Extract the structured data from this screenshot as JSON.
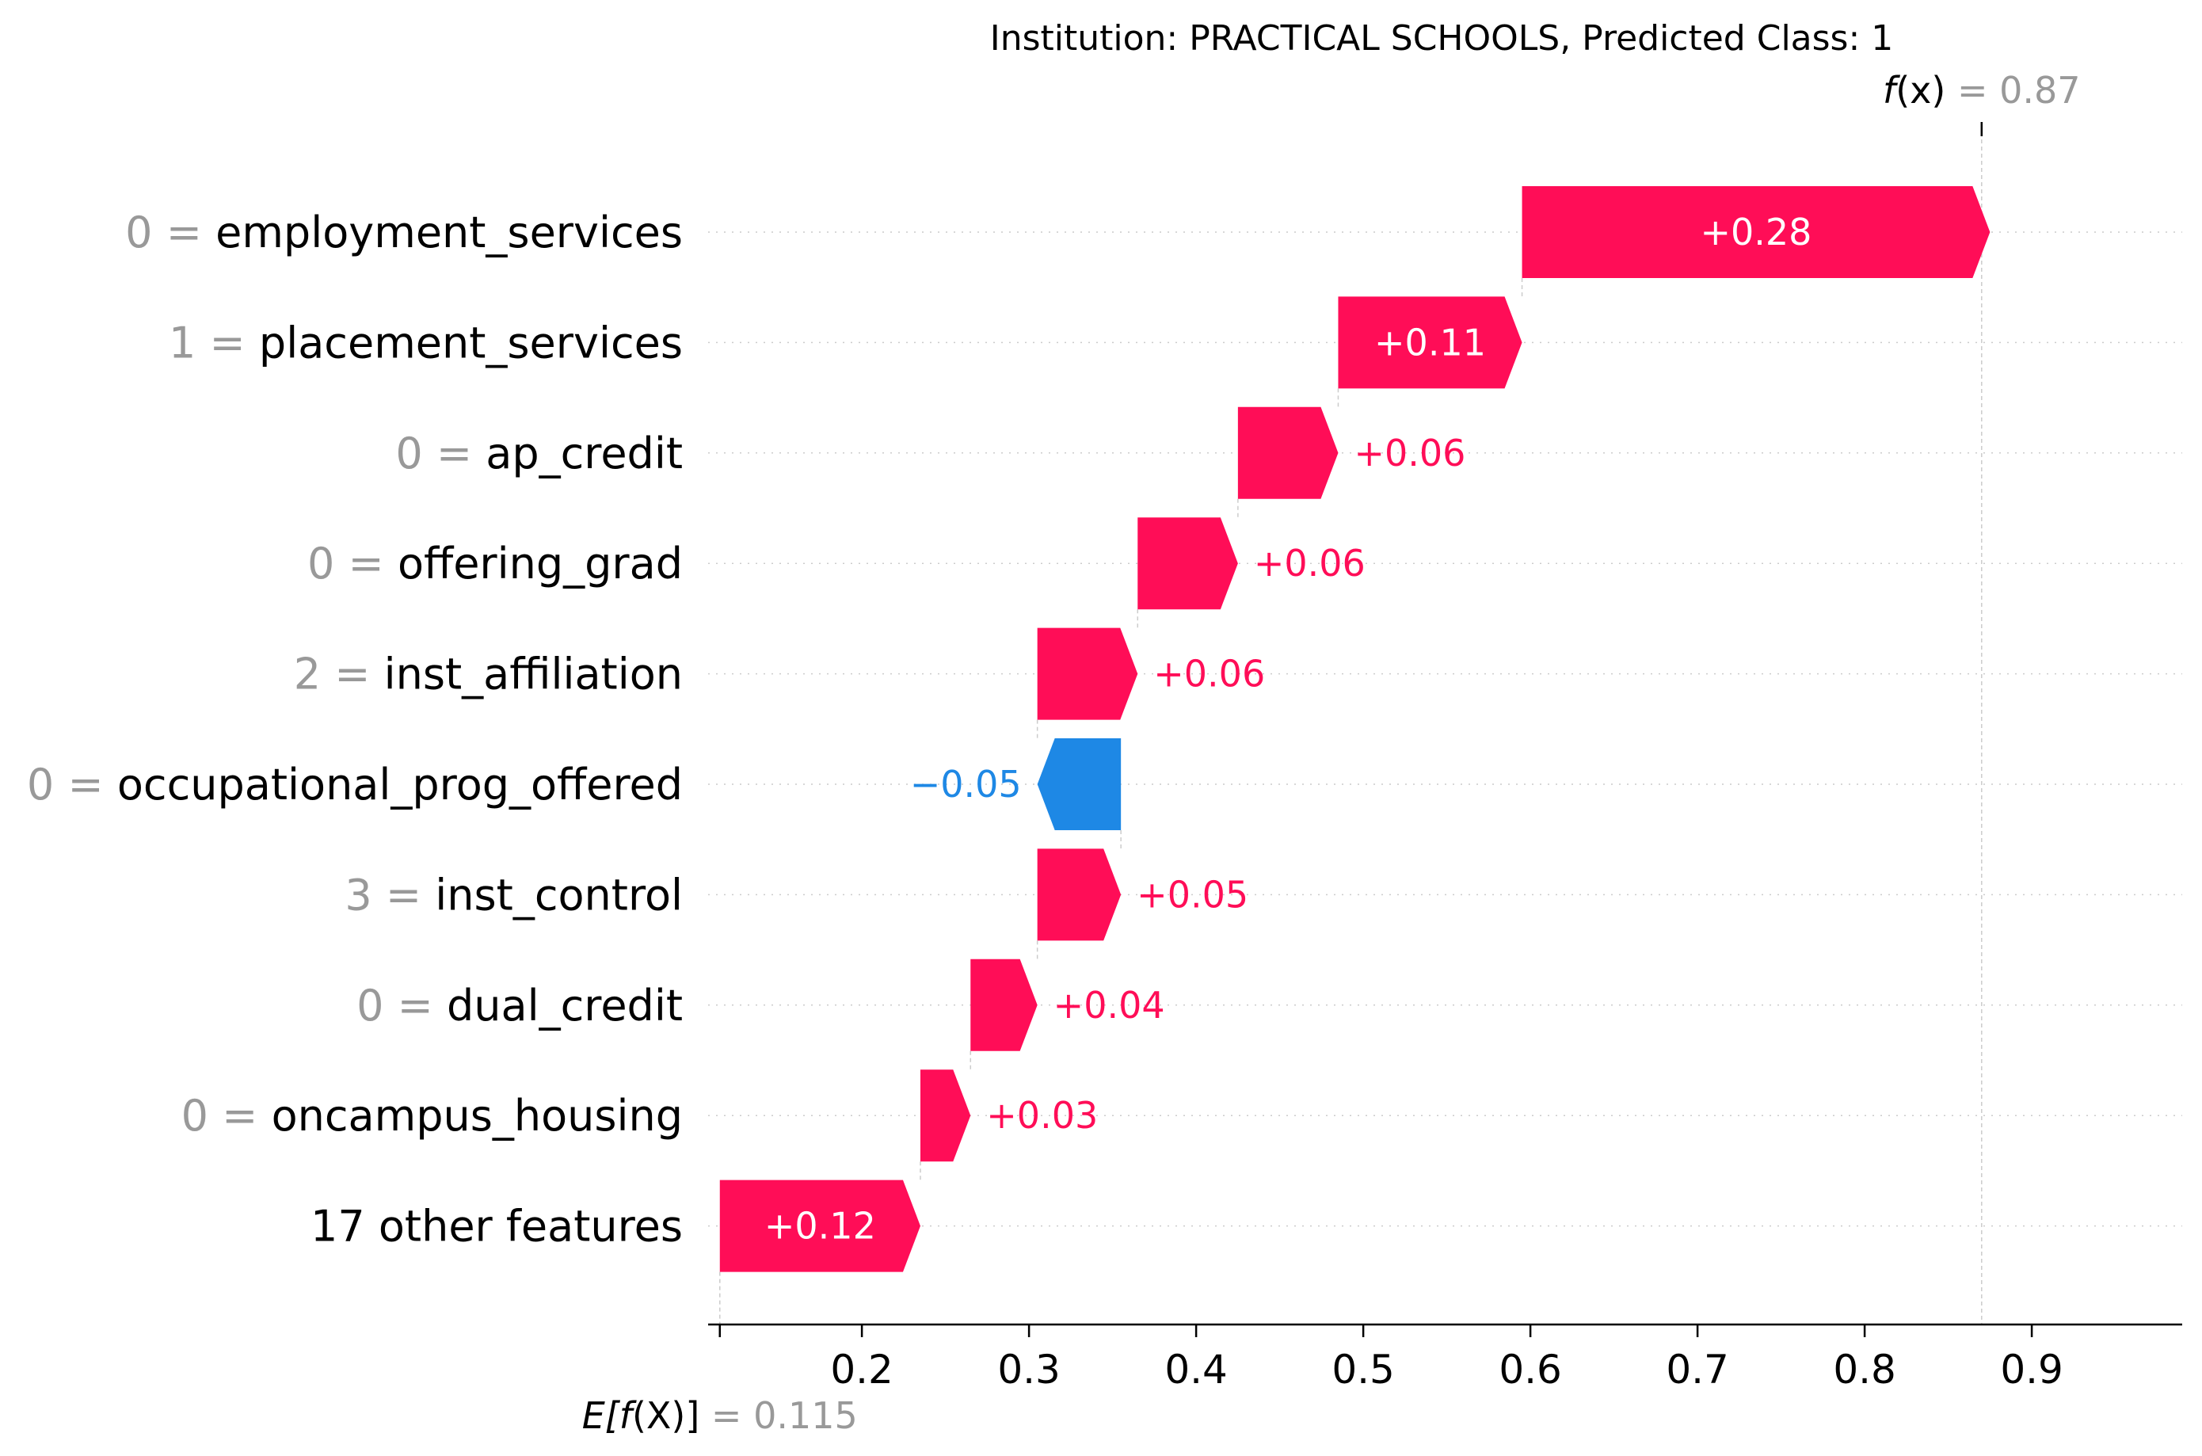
{
  "chart_data": {
    "type": "waterfall",
    "title": "Institution: PRACTICAL SCHOOLS, Predicted Class: 1",
    "base_value": 0.115,
    "base_label_prefix": "E[",
    "base_label_fn": "f",
    "base_label_arg": "(X)",
    "base_label_suffix": "]",
    "base_label_eq": " = ",
    "base_value_text": "0.115",
    "final_value": 0.87,
    "final_label_fn": "f",
    "final_label_arg": "(x)",
    "final_label_eq": " = ",
    "final_value_text": "0.87",
    "xlim": [
      0.108,
      0.99
    ],
    "x_ticks": [
      0.2,
      0.3,
      0.4,
      0.5,
      0.6,
      0.7,
      0.8,
      0.9
    ],
    "x_tick_labels": [
      "0.2",
      "0.3",
      "0.4",
      "0.5",
      "0.6",
      "0.7",
      "0.8",
      "0.9"
    ],
    "features": [
      {
        "value": "0",
        "name": "employment_services",
        "contribution": 0.28,
        "label": "+0.28"
      },
      {
        "value": "1",
        "name": "placement_services",
        "contribution": 0.11,
        "label": "+0.11"
      },
      {
        "value": "0",
        "name": "ap_credit",
        "contribution": 0.06,
        "label": "+0.06"
      },
      {
        "value": "0",
        "name": "offering_grad",
        "contribution": 0.06,
        "label": "+0.06"
      },
      {
        "value": "2",
        "name": "inst_affiliation",
        "contribution": 0.06,
        "label": "+0.06"
      },
      {
        "value": "0",
        "name": "occupational_prog_offered",
        "contribution": -0.05,
        "label": "−0.05"
      },
      {
        "value": "3",
        "name": "inst_control",
        "contribution": 0.05,
        "label": "+0.05"
      },
      {
        "value": "0",
        "name": "dual_credit",
        "contribution": 0.04,
        "label": "+0.04"
      },
      {
        "value": "0",
        "name": "oncampus_housing",
        "contribution": 0.03,
        "label": "+0.03"
      },
      {
        "value": "",
        "name": "17 other features",
        "contribution": 0.12,
        "label": "+0.12"
      }
    ],
    "colors": {
      "positive": "#ff0d57",
      "negative": "#1e88e5",
      "grid": "#cccccc",
      "muted": "#999999"
    }
  }
}
